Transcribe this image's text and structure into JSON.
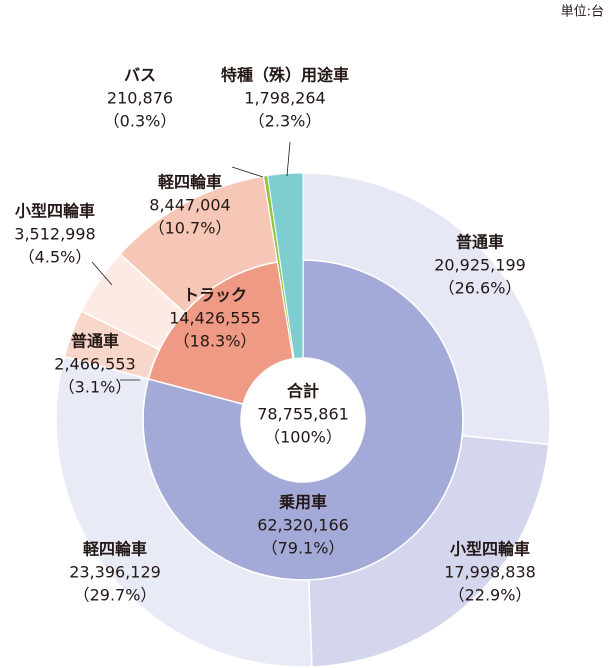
{
  "chart_data": {
    "type": "sunburst",
    "unit": "単位:台",
    "total": {
      "name": "合計",
      "value": 78755861,
      "value_label": "78,755,861",
      "share_label": "（100%）"
    },
    "groups": [
      {
        "name": "乗用車",
        "value": 62320166,
        "value_label": "62,320,166",
        "share_label": "（79.1%）",
        "color": "#a3aad7",
        "children": [
          {
            "name": "普通車",
            "value": 20925199,
            "value_label": "20,925,199",
            "share_label": "（26.6%）",
            "color": "#e6e8f5"
          },
          {
            "name": "小型四輪車",
            "value": 17998838,
            "value_label": "17,998,838",
            "share_label": "（22.9%）",
            "color": "#d3d6ec"
          },
          {
            "name": "軽四輪車",
            "value": 23396129,
            "value_label": "23,396,129",
            "share_label": "（29.7%）",
            "color": "#e8eaf6"
          }
        ]
      },
      {
        "name": "トラック",
        "value": 14426555,
        "value_label": "14,426,555",
        "share_label": "（18.3%）",
        "color": "#ef9a84",
        "children": [
          {
            "name": "普通車",
            "value": 2466553,
            "value_label": "2,466,553",
            "share_label": "（3.1%）",
            "color": "#f8d6c9"
          },
          {
            "name": "小型四輪車",
            "value": 3512998,
            "value_label": "3,512,998",
            "share_label": "（4.5%）",
            "color": "#fcebe5"
          },
          {
            "name": "軽四輪車",
            "value": 8447004,
            "value_label": "8,447,004",
            "share_label": "（10.7%）",
            "color": "#f6c7b7"
          }
        ]
      },
      {
        "name": "バス",
        "value": 210876,
        "value_label": "210,876",
        "share_label": "（0.3%）",
        "color": "#8dc63f"
      },
      {
        "name": "特種（殊）用途車",
        "value": 1798264,
        "value_label": "1,798,264",
        "share_label": "（2.3%）",
        "color": "#7ecdd1"
      }
    ]
  }
}
